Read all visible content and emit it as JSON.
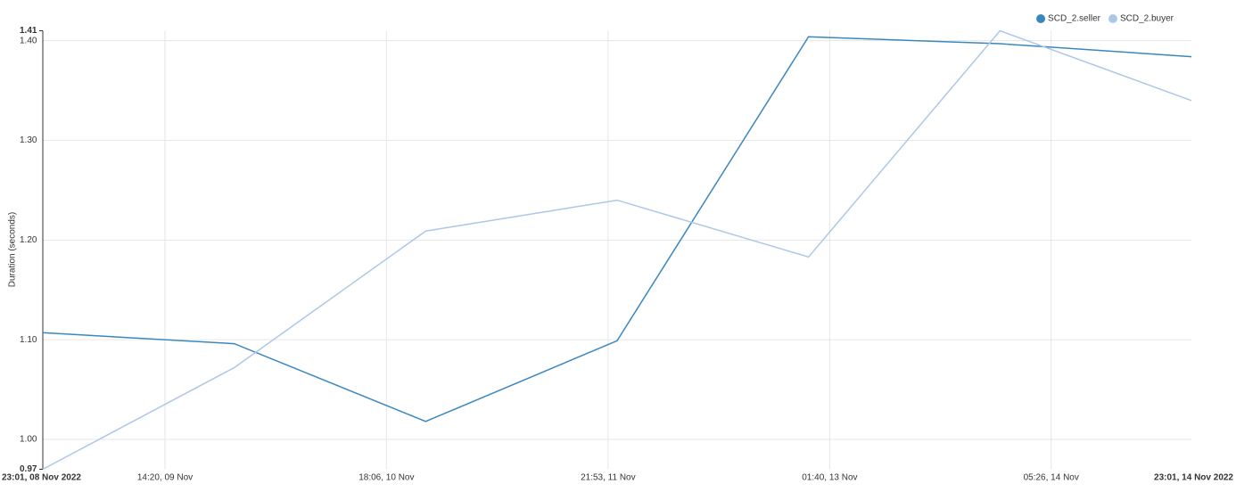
{
  "chart_data": {
    "type": "line",
    "y_label": "Duration (seconds)",
    "x": [
      "2022-11-08 23:01",
      "2022-11-09 23:01",
      "2022-11-10 23:01",
      "2022-11-11 23:01",
      "2022-11-12 23:01",
      "2022-11-13 23:01",
      "2022-11-14 23:01"
    ],
    "series": [
      {
        "name": "SCD_2.seller",
        "color": "#3a87c0",
        "values": [
          1.107,
          1.096,
          1.018,
          1.099,
          1.404,
          1.397,
          1.384
        ]
      },
      {
        "name": "SCD_2.buyer",
        "color": "#aec7e8",
        "values": [
          0.97,
          1.072,
          1.209,
          1.24,
          1.183,
          1.41,
          1.34
        ]
      }
    ],
    "xlim": [
      "2022-11-08 23:01",
      "2022-11-14 23:01"
    ],
    "xticks": [
      {
        "value": "2022-11-08 23:01",
        "label": "23:01, 08 Nov 2022"
      },
      {
        "value": "2022-11-09 14:20",
        "label": "14:20, 09 Nov"
      },
      {
        "value": "2022-11-10 18:06",
        "label": "18:06, 10 Nov"
      },
      {
        "value": "2022-11-11 21:53",
        "label": "21:53, 11 Nov"
      },
      {
        "value": "2022-11-13 01:40",
        "label": "01:40, 13 Nov"
      },
      {
        "value": "2022-11-14 05:26",
        "label": "05:26, 14 Nov"
      },
      {
        "value": "2022-11-14 23:01",
        "label": "23:01, 14 Nov 2022"
      }
    ],
    "ylim": [
      0.97,
      1.41
    ],
    "yticks": [
      0.97,
      {
        "value": 1,
        "label": "1.00"
      },
      {
        "value": 1.1,
        "label": "1.10"
      },
      {
        "value": 1.2,
        "label": "1.20"
      },
      {
        "value": 1.3,
        "label": "1.30"
      },
      {
        "value": 1.4,
        "label": "1.40"
      },
      1.41
    ],
    "grid": true,
    "legend": "top-right"
  }
}
